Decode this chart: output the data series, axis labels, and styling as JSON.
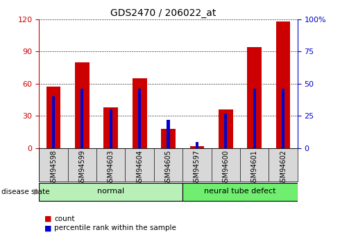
{
  "title": "GDS2470 / 206022_at",
  "samples": [
    "GSM94598",
    "GSM94599",
    "GSM94603",
    "GSM94604",
    "GSM94605",
    "GSM94597",
    "GSM94600",
    "GSM94601",
    "GSM94602"
  ],
  "count_values": [
    57,
    80,
    38,
    65,
    18,
    2,
    36,
    94,
    118
  ],
  "percentile_values": [
    40,
    46,
    30,
    46,
    22,
    5,
    27,
    46,
    46
  ],
  "groups": [
    {
      "label": "normal",
      "indices": [
        0,
        1,
        2,
        3,
        4
      ],
      "color": "#b8f0b8"
    },
    {
      "label": "neural tube defect",
      "indices": [
        5,
        6,
        7,
        8
      ],
      "color": "#70ee70"
    }
  ],
  "left_ylim": [
    0,
    120
  ],
  "right_ylim": [
    0,
    100
  ],
  "left_yticks": [
    0,
    30,
    60,
    90,
    120
  ],
  "right_yticks": [
    0,
    25,
    50,
    75,
    100
  ],
  "right_yticklabels": [
    "0",
    "25",
    "50",
    "75",
    "100%"
  ],
  "bar_color": "#cc0000",
  "percentile_color": "#0000cc",
  "bar_width": 0.5,
  "percentile_bar_width": 0.1,
  "disease_state_label": "disease state",
  "legend_count": "count",
  "legend_percentile": "percentile rank within the sample"
}
